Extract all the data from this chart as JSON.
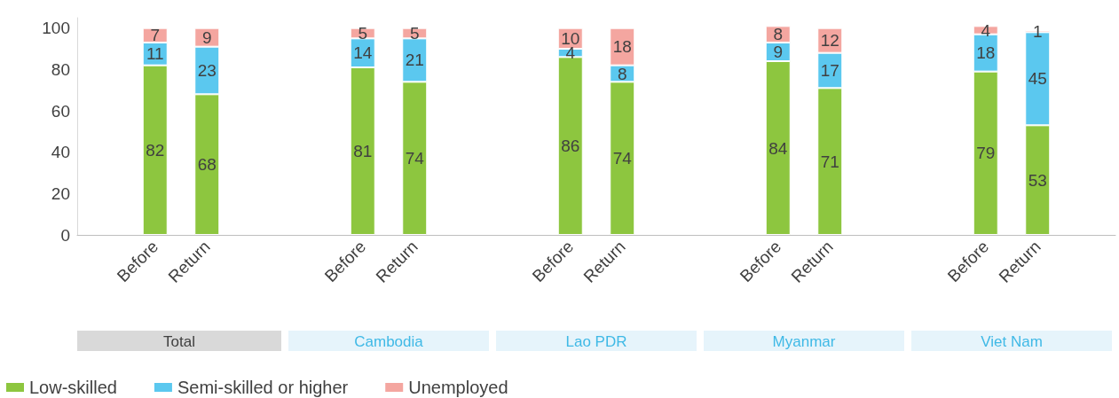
{
  "chart_data": {
    "type": "bar",
    "stacked": true,
    "data_labels": true,
    "legend": "bottom left",
    "grid": false,
    "categories": [
      null,
      "Before",
      "Return",
      null,
      null,
      "Before",
      "Return",
      null,
      null,
      "Before",
      "Return",
      null,
      null,
      "Before",
      "Return",
      null,
      null,
      "Before",
      "Return",
      null
    ],
    "series": [
      {
        "name": "Low-skilled",
        "color": "#8dc63f",
        "values": [
          null,
          82,
          68,
          null,
          null,
          81,
          74,
          null,
          null,
          86,
          74,
          null,
          null,
          84,
          71,
          null,
          null,
          79,
          53,
          null
        ]
      },
      {
        "name": "Semi-skilled or higher",
        "color": "#5bc8ef",
        "values": [
          null,
          11,
          23,
          null,
          null,
          14,
          21,
          null,
          null,
          4,
          8,
          null,
          null,
          9,
          17,
          null,
          null,
          18,
          45,
          null
        ]
      },
      {
        "name": "Unemployed",
        "color": "#f4a6a0",
        "values": [
          null,
          7,
          9,
          null,
          null,
          5,
          5,
          null,
          null,
          10,
          18,
          null,
          null,
          8,
          12,
          null,
          null,
          4,
          1,
          null
        ]
      }
    ],
    "ylim": [
      0,
      105
    ],
    "yticks": [
      0,
      20,
      40,
      60,
      80,
      100
    ],
    "annotations": [
      "Total",
      "Cambodia",
      "Lao PDR",
      "Myanmar",
      "Viet Nam"
    ]
  }
}
